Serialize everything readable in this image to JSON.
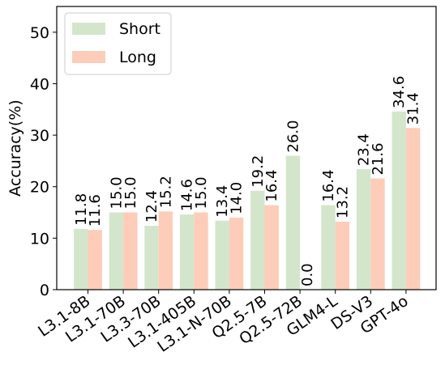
{
  "chart_data": {
    "type": "bar",
    "title": "",
    "xlabel": "",
    "ylabel": "Accuracy(%)",
    "ylim": [
      0,
      55
    ],
    "yticks": [
      0,
      10,
      20,
      30,
      40,
      50
    ],
    "grid": false,
    "legend_position": "top-left",
    "categories": [
      "L3.1-8B",
      "L3.1-70B",
      "L3.3-70B",
      "L3.1-405B",
      "L3.1-N-70B",
      "Q2.5-7B",
      "Q2.5-72B",
      "GLM4-L",
      "DS-V3",
      "GPT-4o"
    ],
    "series": [
      {
        "name": "Short",
        "color": "#d3e6cc",
        "values": [
          11.8,
          15.0,
          12.4,
          14.6,
          13.4,
          19.2,
          26.0,
          16.4,
          23.4,
          34.6
        ],
        "labels": [
          "11.8",
          "15.0",
          "12.4",
          "14.6",
          "13.4",
          "19.2",
          "26.0",
          "16.4",
          "23.4",
          "34.6"
        ]
      },
      {
        "name": "Long",
        "color": "#fdcdb9",
        "values": [
          11.6,
          15.0,
          15.2,
          15.0,
          14.0,
          16.4,
          0.0,
          13.2,
          21.6,
          31.4
        ],
        "labels": [
          "11.6",
          "15.0",
          "15.2",
          "15.0",
          "14.0",
          "16.4",
          "0.0",
          "13.2",
          "21.6",
          "31.4"
        ]
      }
    ]
  }
}
